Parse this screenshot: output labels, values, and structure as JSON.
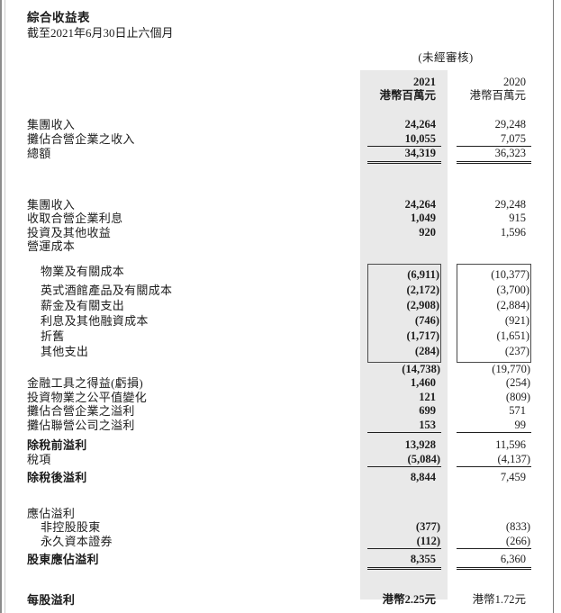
{
  "page": {
    "title": "綜合收益表",
    "subtitle": "截至2021年6月30日止六個月",
    "audit_note": "(未經審核)",
    "col_2021": {
      "year": "2021",
      "unit": "港幣百萬元"
    },
    "col_2020": {
      "year": "2020",
      "unit": "港幣百萬元"
    },
    "shade_color": "#e9e9e9",
    "text_color": "#1c1c1c"
  },
  "table": {
    "rows": [
      {
        "label": "集團收入",
        "v2021": "24,264",
        "v2020": "29,248"
      },
      {
        "label": "攤佔合營企業之收入",
        "v2021": "10,055",
        "v2020": "7,075",
        "line": "single"
      },
      {
        "label": "總額",
        "v2021": "34,319",
        "v2020": "36,323",
        "line": "double"
      },
      {
        "label": "集團收入",
        "v2021": "24,264",
        "v2020": "29,248",
        "space": 38
      },
      {
        "label": "收取合營企業利息",
        "v2021": "1,049",
        "v2020": "915"
      },
      {
        "label": "投資及其他收益",
        "v2021": "920",
        "v2020": "1,596"
      },
      {
        "label": "營運成本",
        "v2021": "",
        "v2020": ""
      },
      {
        "label": "物業及有關成本",
        "indent": 1,
        "v2021": "(6,911)",
        "v2020": "(10,377)",
        "box": "start",
        "space": 11
      },
      {
        "label": "英式酒館產品及有關成本",
        "indent": 1,
        "v2021": "(2,172)",
        "v2020": "(3,700)",
        "box": "mid"
      },
      {
        "label": "薪金及有關支出",
        "indent": 1,
        "v2021": "(2,908)",
        "v2020": "(2,884)",
        "box": "mid"
      },
      {
        "label": "利息及其他融資成本",
        "indent": 1,
        "v2021": "(746)",
        "v2020": "(921)",
        "box": "mid"
      },
      {
        "label": "折舊",
        "indent": 1,
        "v2021": "(1,717)",
        "v2020": "(1,651)",
        "box": "mid"
      },
      {
        "label": "其他支出",
        "indent": 1,
        "v2021": "(284)",
        "v2020": "(237)",
        "box": "end"
      },
      {
        "label": "",
        "v2021": "(14,738)",
        "v2020": "(19,770)"
      },
      {
        "label": "金融工具之得益(虧損)",
        "v2021": "1,460",
        "v2020": "(254)"
      },
      {
        "label": "投資物業之公平值變化",
        "v2021": "121",
        "v2020": "(809)"
      },
      {
        "label": "攤佔合營企業之溢利",
        "v2021": "699",
        "v2020": "571"
      },
      {
        "label": "攤佔聯營公司之溢利",
        "v2021": "153",
        "v2020": "99",
        "line": "single"
      },
      {
        "label": "除稅前溢利",
        "bold": 1,
        "v2021": "13,928",
        "v2020": "11,596",
        "space": 6
      },
      {
        "label": "稅項",
        "v2021": "(5,084)",
        "v2020": "(4,137)",
        "line": "single"
      },
      {
        "label": "除稅後溢利",
        "bold": 1,
        "v2021": "8,844",
        "v2020": "7,459",
        "space": 4
      },
      {
        "label": "應佔溢利",
        "v2021": "",
        "v2020": "",
        "space": 24
      },
      {
        "label": "非控股股東",
        "indent": 1,
        "v2021": "(377)",
        "v2020": "(833)"
      },
      {
        "label": "永久資本證券",
        "indent": 1,
        "v2021": "(112)",
        "v2020": "(266)",
        "line": "single"
      },
      {
        "label": "股東應佔溢利",
        "bold": 1,
        "v2021": "8,355",
        "v2020": "6,360",
        "line": "double",
        "space": 4
      },
      {
        "label": "每股溢利",
        "bold": 1,
        "v2021": "港幣2.25元",
        "v2020": "港幣1.72元",
        "space": 26
      }
    ]
  }
}
